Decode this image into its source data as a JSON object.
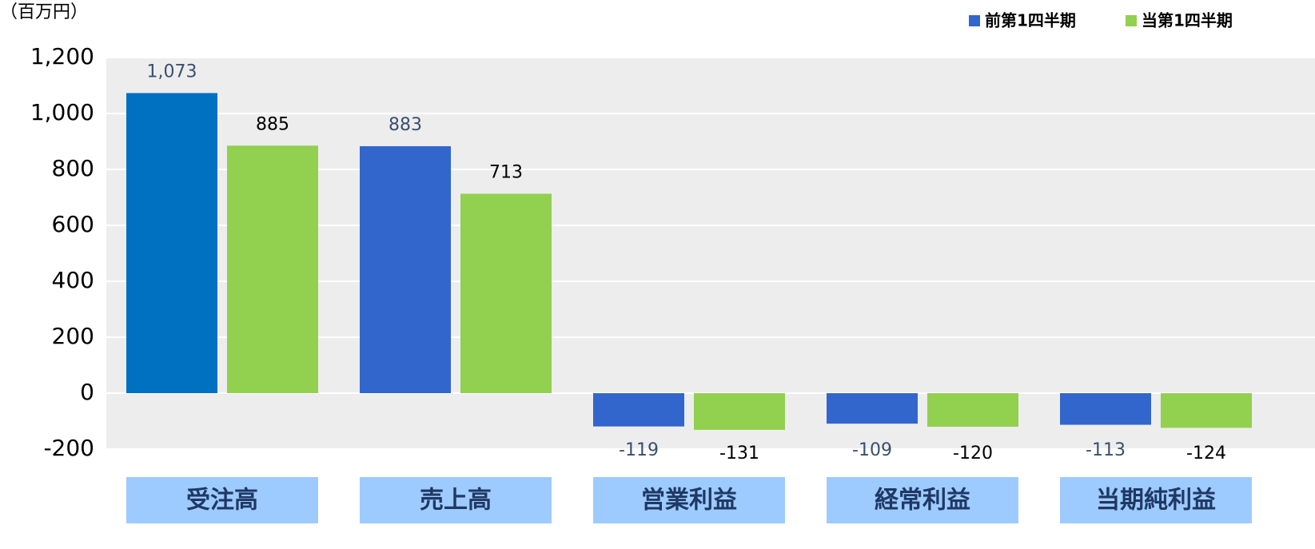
{
  "chart_data": {
    "type": "bar",
    "unit_label": "（百万円）",
    "categories": [
      "受注高",
      "売上高",
      "営業利益",
      "経常利益",
      "当期純利益"
    ],
    "series": [
      {
        "name": "前第1四半期",
        "color": "#3366cc",
        "colors": [
          "#0070c0",
          "#3366cc",
          "#3366cc",
          "#3366cc",
          "#3366cc"
        ],
        "label_color": "#3a4f6e",
        "values": [
          1073,
          883,
          -119,
          -109,
          -113
        ],
        "value_labels": [
          "1,073",
          "883",
          "-119",
          "-109",
          "-113"
        ]
      },
      {
        "name": "当第1四半期",
        "color": "#92d050",
        "label_color": "#000000",
        "values": [
          885,
          713,
          -131,
          -120,
          -124
        ],
        "value_labels": [
          "885",
          "713",
          "-131",
          "-120",
          "-124"
        ]
      }
    ],
    "ylim": [
      -200,
      1200
    ],
    "yticks": [
      -200,
      0,
      200,
      400,
      600,
      800,
      {
        "value": 1000,
        "label": "1,000"
      },
      {
        "value": 1200,
        "label": "1,200"
      }
    ],
    "grid": true,
    "legend": "top-right"
  }
}
